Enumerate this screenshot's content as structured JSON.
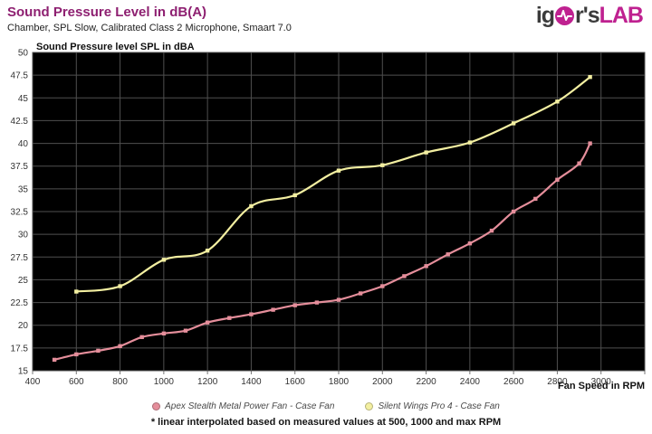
{
  "header": {
    "title": "Sound Pressure Level in dB(A)",
    "subtitle": "Chamber, SPL Slow, Calibrated Class 2 Microphone, Smaart 7.0",
    "logo": {
      "part1": "ig",
      "icon": "pulse-icon",
      "part2": "r's",
      "part3": "LAB"
    }
  },
  "footnote": "* linear interpolated based on measured values at 500, 1000 and max RPM",
  "chart_data": {
    "type": "line",
    "title": "Sound Pressure Level in dB(A)",
    "ylabel": "Sound Pressure level SPL in dBA",
    "xlabel": "Fan Speed in RPM",
    "xlim": [
      400,
      3200
    ],
    "ylim": [
      15,
      50
    ],
    "x_tick_step": 200,
    "x_label_max": 3000,
    "y_tick_step": 2.5,
    "grid": true,
    "plot_bg": "#000000",
    "grid_color": "#4f4f4f",
    "border_color": "#5a5a5a",
    "tick_color": "#777777",
    "label_color": "#333333",
    "legend_position": "bottom",
    "series": [
      {
        "name": "Apex Stealth Metal Power Fan - Case Fan",
        "color": "#e58e9b",
        "x": [
          500,
          600,
          700,
          800,
          900,
          1000,
          1100,
          1200,
          1300,
          1400,
          1500,
          1600,
          1700,
          1800,
          1900,
          2000,
          2100,
          2200,
          2300,
          2400,
          2500,
          2600,
          2700,
          2800,
          2900,
          2950
        ],
        "y": [
          16.2,
          16.8,
          17.2,
          17.7,
          18.7,
          19.1,
          19.4,
          20.3,
          20.8,
          21.2,
          21.7,
          22.2,
          22.5,
          22.8,
          23.5,
          24.3,
          25.4,
          26.5,
          27.8,
          29.0,
          30.4,
          32.5,
          33.9,
          36.0,
          37.8,
          40.0
        ]
      },
      {
        "name": "Silent Wings Pro 4 - Case Fan",
        "color": "#f3efa1",
        "x": [
          600,
          800,
          1000,
          1200,
          1400,
          1600,
          1800,
          2000,
          2200,
          2400,
          2600,
          2800,
          2950
        ],
        "y": [
          23.7,
          24.3,
          27.2,
          28.2,
          33.1,
          34.3,
          37.0,
          37.6,
          39.0,
          40.1,
          42.2,
          44.6,
          47.3
        ]
      }
    ]
  }
}
